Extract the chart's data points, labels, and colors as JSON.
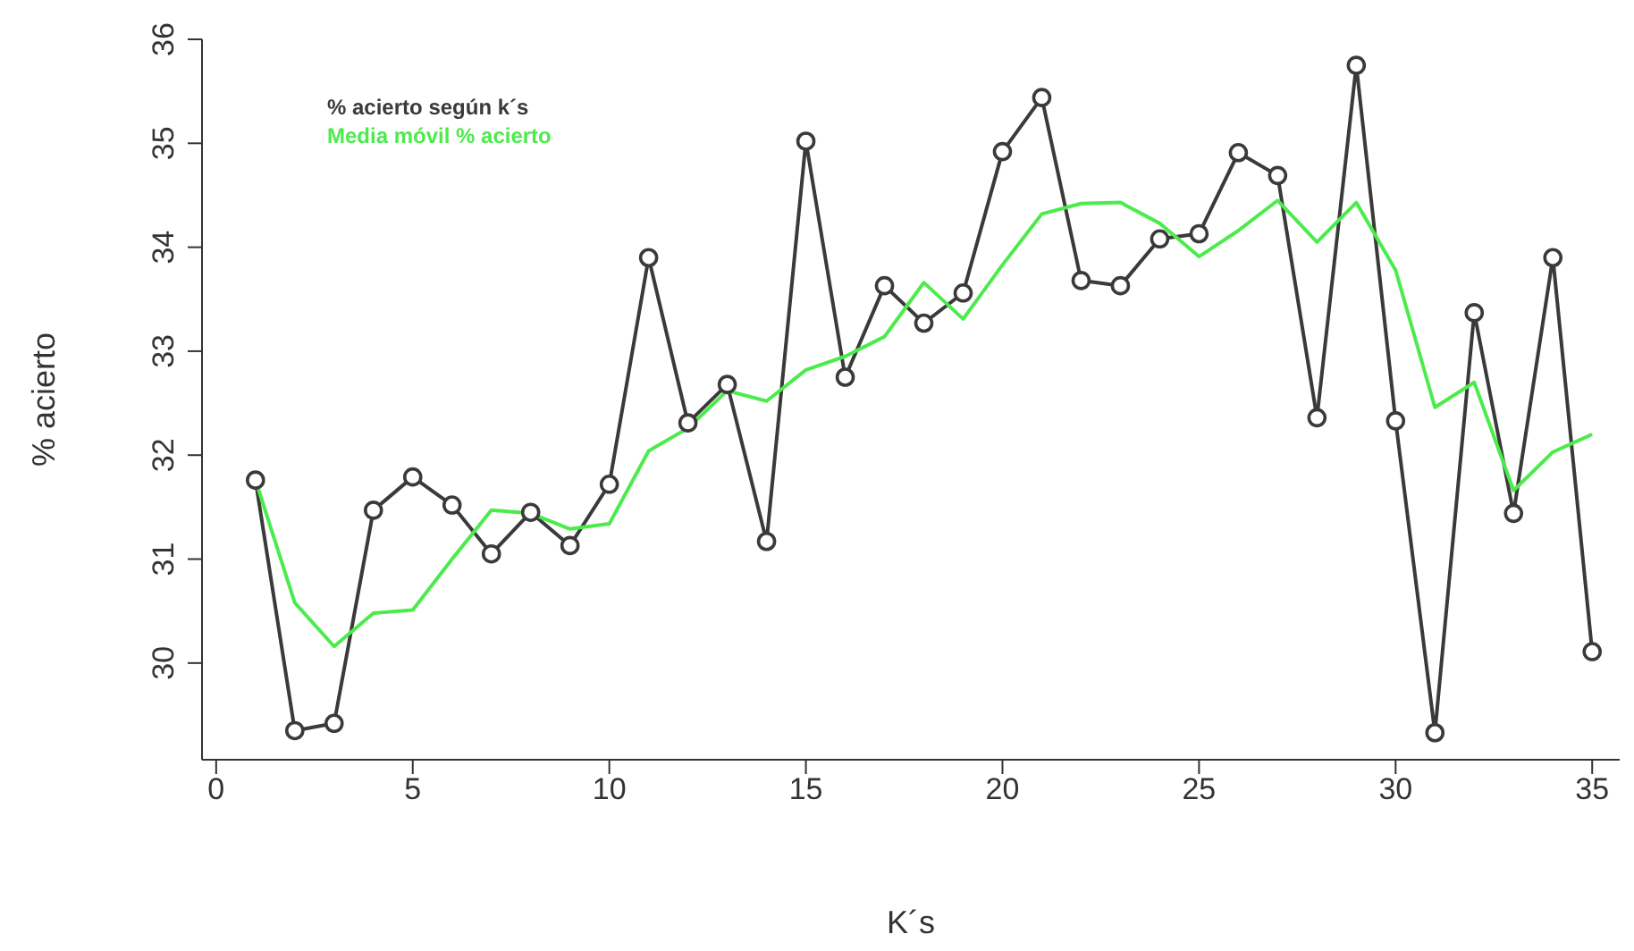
{
  "chart_data": {
    "type": "line",
    "xlabel": "K´s",
    "ylabel": "% acierto",
    "x": [
      1,
      2,
      3,
      4,
      5,
      6,
      7,
      8,
      9,
      10,
      11,
      12,
      13,
      14,
      15,
      16,
      17,
      18,
      19,
      20,
      21,
      22,
      23,
      24,
      25,
      26,
      27,
      28,
      29,
      30,
      31,
      32,
      33,
      34,
      35
    ],
    "series": [
      {
        "name": "% acierto según k´s",
        "color": "#3a3a3a",
        "marker": "circle",
        "values": [
          31.76,
          29.35,
          29.42,
          31.47,
          31.79,
          31.52,
          31.05,
          31.45,
          31.13,
          31.72,
          33.9,
          32.31,
          32.68,
          31.17,
          35.02,
          32.75,
          33.63,
          33.27,
          33.56,
          34.92,
          35.44,
          33.68,
          33.63,
          34.08,
          34.13,
          34.91,
          34.69,
          32.36,
          35.75,
          32.33,
          29.33,
          33.37,
          31.44,
          33.9,
          30.11
        ]
      },
      {
        "name": "Media móvil % acierto",
        "color": "#4ceb4c",
        "marker": "none",
        "values": [
          31.76,
          30.58,
          30.16,
          30.48,
          30.51,
          31.0,
          31.47,
          31.44,
          31.29,
          31.34,
          32.04,
          32.26,
          32.62,
          32.52,
          32.82,
          32.95,
          33.14,
          33.66,
          33.31,
          33.83,
          34.32,
          34.42,
          34.43,
          34.23,
          33.91,
          34.16,
          34.45,
          34.05,
          34.43,
          33.78,
          32.46,
          32.7,
          31.66,
          32.03,
          32.2
        ]
      }
    ],
    "xlim": [
      -0.36,
      35.7
    ],
    "xticks": [
      0,
      5,
      10,
      15,
      20,
      25,
      30,
      35
    ],
    "ylim": [
      29.07,
      36
    ],
    "yticks": [
      30,
      31,
      32,
      33,
      34,
      35,
      36
    ],
    "legend": "top left",
    "grid": false
  }
}
